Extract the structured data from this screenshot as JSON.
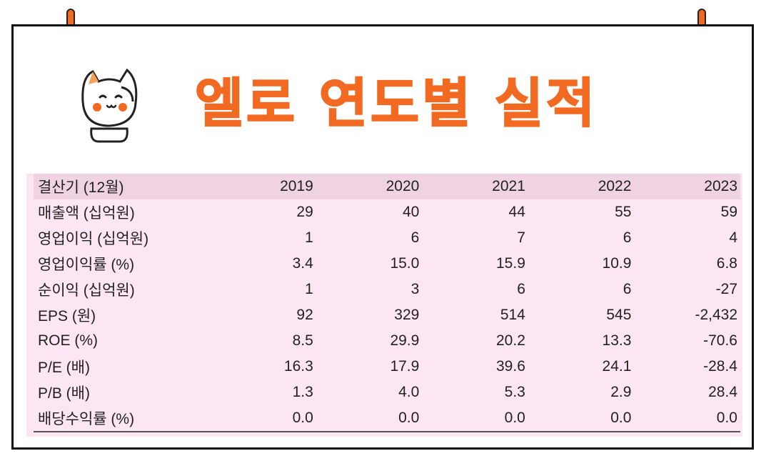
{
  "header": {
    "title": "엘로 연도별 실적"
  },
  "table": {
    "columns": [
      "결산기 (12월)",
      "2019",
      "2020",
      "2021",
      "2022",
      "2023"
    ],
    "rows": [
      {
        "label": "매출액 (십억원)",
        "values": [
          "29",
          "40",
          "44",
          "55",
          "59"
        ]
      },
      {
        "label": "영업이익 (십억원)",
        "values": [
          "1",
          "6",
          "7",
          "6",
          "4"
        ]
      },
      {
        "label": "영업이익률 (%)",
        "values": [
          "3.4",
          "15.0",
          "15.9",
          "10.9",
          "6.8"
        ]
      },
      {
        "label": "순이익 (십억원)",
        "values": [
          "1",
          "3",
          "6",
          "6",
          "-27"
        ]
      },
      {
        "label": "EPS (원)",
        "values": [
          "92",
          "329",
          "514",
          "545",
          "-2,432"
        ]
      },
      {
        "label": "ROE (%)",
        "values": [
          "8.5",
          "29.9",
          "20.2",
          "13.3",
          "-70.6"
        ]
      },
      {
        "label": "P/E (배)",
        "values": [
          "16.3",
          "17.9",
          "39.6",
          "24.1",
          "-28.4"
        ]
      },
      {
        "label": "P/B (배)",
        "values": [
          "1.3",
          "4.0",
          "5.3",
          "2.9",
          "28.4"
        ]
      },
      {
        "label": "배당수익률 (%)",
        "values": [
          "0.0",
          "0.0",
          "0.0",
          "0.0",
          "0.0"
        ]
      }
    ]
  },
  "colors": {
    "accent": "#f26a21",
    "table_bg": "#fde6f3",
    "header_bg": "#efd3e3"
  },
  "icons": {
    "mascot": "cat-mascot-icon",
    "clip": "binder-clip-icon"
  }
}
